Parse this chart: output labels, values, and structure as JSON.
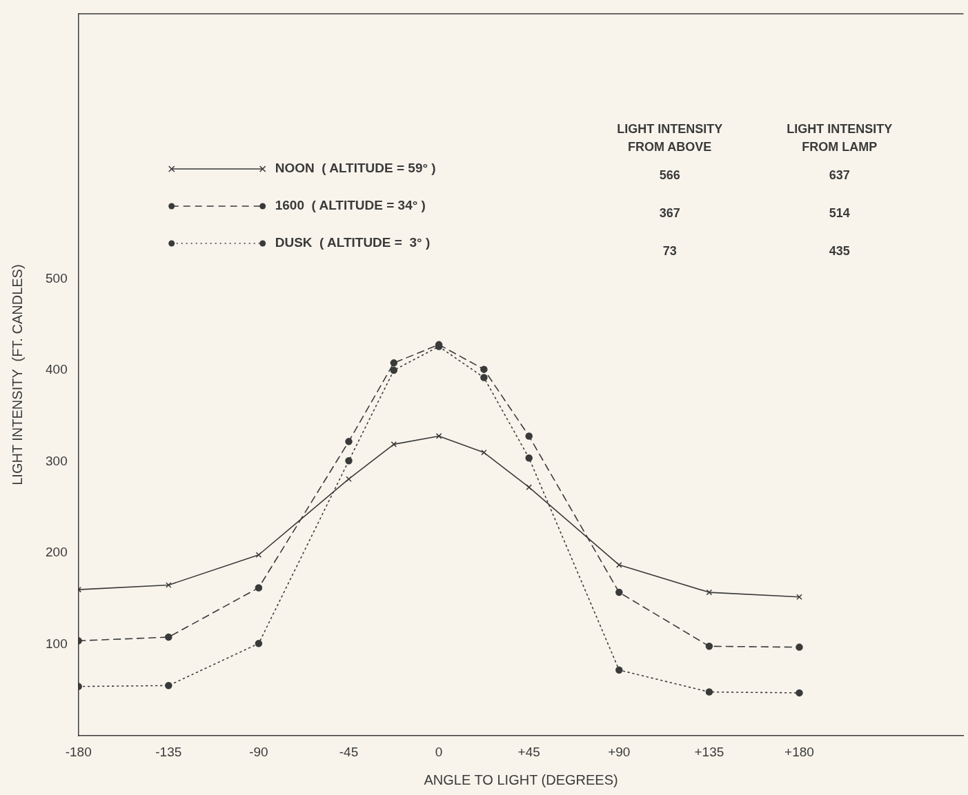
{
  "chart_data": {
    "type": "line",
    "xlabel": "ANGLE TO LIGHT (DEGREES)",
    "ylabel": "LIGHT INTENSITY  (FT. CANDLES)",
    "x": [
      -180,
      -135,
      -90,
      -45,
      -22.5,
      0,
      22.5,
      45,
      90,
      135,
      180
    ],
    "xlim": [
      -180,
      262
    ],
    "xticks": [
      -180,
      -135,
      -90,
      -45,
      0,
      {
        "value": 45,
        "label": "+45"
      },
      {
        "value": 90,
        "label": "+90"
      },
      {
        "value": 135,
        "label": "+135"
      },
      {
        "value": 180,
        "label": "+180"
      }
    ],
    "ylim": [
      0,
      790
    ],
    "yticks": [
      100,
      200,
      300,
      400,
      500
    ],
    "grid": false,
    "legend": "top left",
    "series": [
      {
        "name": "NOON  ( ALTITUDE = 59° )",
        "color": "#3a3a3a",
        "marker": "cross",
        "line_style": "solid",
        "values": [
          160,
          165,
          198,
          281,
          319,
          328,
          310,
          272,
          187,
          157,
          152
        ]
      },
      {
        "name": "1600  ( ALTITUDE = 34° )",
        "color": "#3a3a3a",
        "marker": "circle",
        "line_style": "dashed",
        "values": [
          104,
          108,
          162,
          322,
          408,
          428,
          401,
          328,
          157,
          98,
          97
        ]
      },
      {
        "name": "DUSK  ( ALTITUDE =  3° )",
        "color": "#3a3a3a",
        "marker": "circle",
        "line_style": "dotted",
        "values": [
          54,
          55,
          101,
          301,
          400,
          426,
          392,
          304,
          72,
          48,
          47
        ]
      }
    ],
    "annotations": [
      "LIGHT INTENSITY FROM ABOVE",
      "LIGHT INTENSITY FROM LAMP",
      "566",
      "637",
      "367",
      "514",
      "73",
      "435"
    ]
  }
}
